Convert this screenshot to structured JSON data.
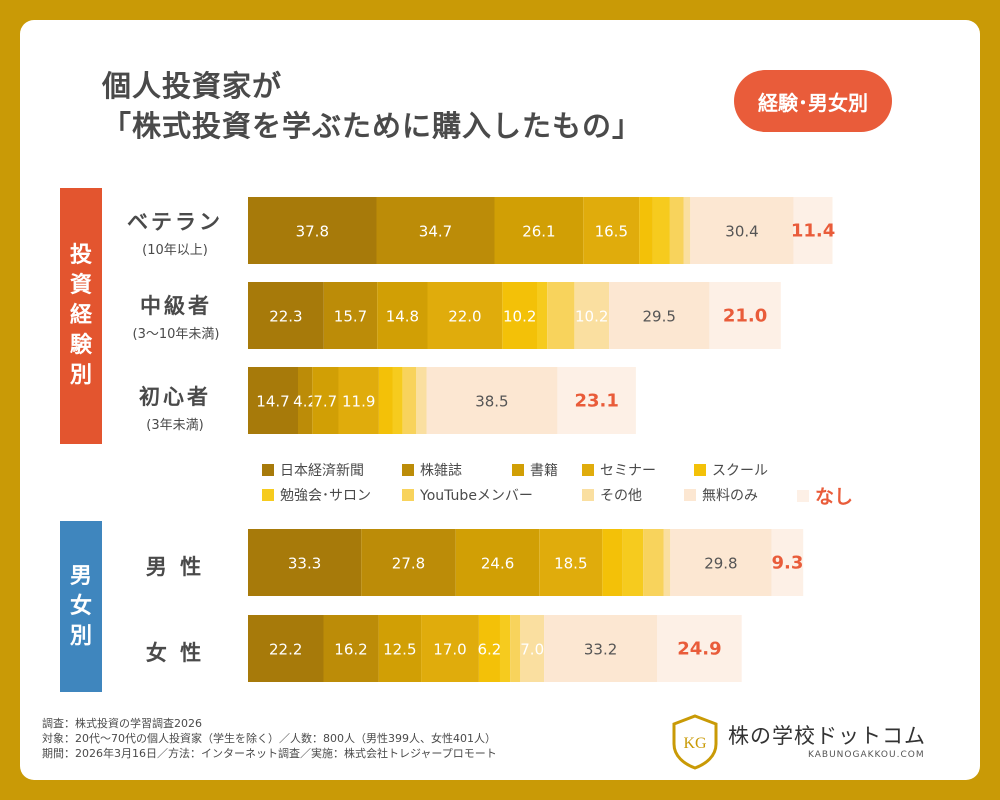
{
  "title_line1": "個人投資家が",
  "title_line2": "「株式投資を学ぶために購入したもの」",
  "badge": "経験･男女別",
  "group_labels": {
    "experience": [
      "投",
      "資",
      "経",
      "験",
      "別"
    ],
    "gender": [
      "男",
      "女",
      "別"
    ]
  },
  "rows": [
    {
      "label": "ベテラン",
      "sub": "(10年以上)"
    },
    {
      "label": "中級者",
      "sub": "(3〜10年未満)"
    },
    {
      "label": "初心者",
      "sub": "(3年未満)"
    },
    {
      "label": "男 性",
      "sub": ""
    },
    {
      "label": "女 性",
      "sub": ""
    }
  ],
  "legend": [
    {
      "name": "日本経済新聞",
      "color": "#A77A0A"
    },
    {
      "name": "株雑誌",
      "color": "#BC8C08"
    },
    {
      "name": "書籍",
      "color": "#D19F05"
    },
    {
      "name": "セミナー",
      "color": "#E0AC0C"
    },
    {
      "name": "スクール",
      "color": "#F3C108"
    },
    {
      "name": "勉強会･サロン",
      "color": "#F6CB1E"
    },
    {
      "name": "YouTubeメンバー",
      "color": "#F8D35C"
    },
    {
      "name": "その他",
      "color": "#FADFA0"
    },
    {
      "name": "無料のみ",
      "color": "#FCE7D2"
    },
    {
      "name": "なし",
      "color": "#FDF0E6"
    }
  ],
  "chart_data": {
    "type": "bar",
    "orientation": "horizontal-stacked",
    "categories": [
      "ベテラン(10年以上)",
      "中級者(3〜10年未満)",
      "初心者(3年未満)",
      "男性",
      "女性"
    ],
    "series": [
      {
        "name": "日本経済新聞",
        "values": [
          37.8,
          22.3,
          14.7,
          33.3,
          22.2
        ],
        "labels": [
          "37.8",
          "22.3",
          "14.7",
          "33.3",
          "22.2"
        ]
      },
      {
        "name": "株雑誌",
        "values": [
          34.7,
          15.7,
          4.2,
          27.8,
          16.2
        ],
        "labels": [
          "34.7",
          "15.7",
          "4.2",
          "27.8",
          "16.2"
        ]
      },
      {
        "name": "書籍",
        "values": [
          26.1,
          14.8,
          7.7,
          24.6,
          12.5
        ],
        "labels": [
          "26.1",
          "14.8",
          "7.7",
          "24.6",
          "12.5"
        ]
      },
      {
        "name": "セミナー",
        "values": [
          16.5,
          22.0,
          11.9,
          18.5,
          17.0
        ],
        "labels": [
          "16.5",
          "22.0",
          "11.9",
          "18.5",
          "17.0"
        ]
      },
      {
        "name": "スクール",
        "values": [
          4.0,
          10.2,
          4.0,
          6.0,
          6.2
        ],
        "labels": [
          "",
          "10.2",
          "",
          "",
          "6.2"
        ]
      },
      {
        "name": "勉強会･サロン",
        "values": [
          5.0,
          3.0,
          3.0,
          6.0,
          3.0
        ],
        "labels": [
          "",
          "",
          "",
          "",
          ""
        ]
      },
      {
        "name": "YouTubeメンバー",
        "values": [
          4.0,
          8.0,
          4.0,
          6.0,
          3.0
        ],
        "labels": [
          "",
          "",
          "",
          "",
          ""
        ]
      },
      {
        "name": "その他",
        "values": [
          2.0,
          10.2,
          3.0,
          2.0,
          7.0
        ],
        "labels": [
          "",
          "10.2",
          "",
          "",
          "7.0"
        ]
      },
      {
        "name": "無料のみ",
        "values": [
          30.4,
          29.5,
          38.5,
          29.8,
          33.2
        ],
        "labels": [
          "30.4",
          "29.5",
          "38.5",
          "29.8",
          "33.2"
        ]
      },
      {
        "name": "なし",
        "values": [
          11.4,
          21.0,
          23.1,
          9.3,
          24.9
        ],
        "labels": [
          "11.4",
          "21.0",
          "23.1",
          "9.3",
          "24.9"
        ]
      }
    ]
  },
  "notes": [
    "調査：株式投資の学習調査2026",
    "対象：20代〜70代の個人投資家（学生を除く）／人数：800人（男性399人、女性401人）",
    "期間：2026年3月16日／方法：インターネット調査／実施：株式会社トレジャープロモート"
  ],
  "logo": {
    "text": "株の学校ドットコム",
    "url": "KABUNOGAKKOU.COM",
    "mark": "KG"
  }
}
